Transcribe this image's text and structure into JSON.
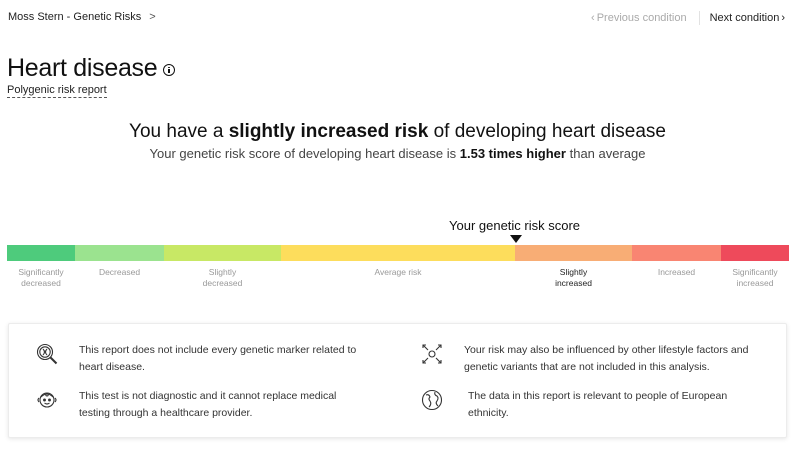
{
  "breadcrumb": {
    "label": "Moss Stern - Genetic Risks",
    "separator": ">"
  },
  "nav": {
    "prev_label": "Previous condition",
    "next_label": "Next condition",
    "prev_chevron": "‹",
    "next_chevron": "›"
  },
  "header": {
    "title": "Heart disease",
    "subtitle": "Polygenic risk report"
  },
  "summary": {
    "headline_pre": "You have a ",
    "headline_bold": "slightly increased risk",
    "headline_post": " of developing heart disease",
    "subline_pre": "Your genetic risk score of developing heart disease is ",
    "subline_bold": "1.53 times higher",
    "subline_post": " than average"
  },
  "risk_scale": {
    "score_label": "Your genetic risk score",
    "active_index": 4,
    "segments": [
      {
        "label_line1": "Significantly",
        "label_line2": "decreased",
        "color": "#4ecb7c"
      },
      {
        "label_line1": "Decreased",
        "label_line2": "",
        "color": "#9be38f"
      },
      {
        "label_line1": "Slightly",
        "label_line2": "decreased",
        "color": "#c8e865"
      },
      {
        "label_line1": "Average risk",
        "label_line2": "",
        "color": "#fddd5c"
      },
      {
        "label_line1": "Slightly",
        "label_line2": "increased",
        "color": "#f8ad75"
      },
      {
        "label_line1": "Increased",
        "label_line2": "",
        "color": "#f98572"
      },
      {
        "label_line1": "Significantly",
        "label_line2": "increased",
        "color": "#ee4a5b"
      }
    ]
  },
  "notes": [
    {
      "icon": "magnifier-dna-icon",
      "line1": "This report does not include every genetic marker related to",
      "line2": "heart disease."
    },
    {
      "icon": "lifestyle-factors-icon",
      "line1": "Your risk may also be influenced by other lifestyle factors and",
      "line2": "genetic variants that are not included in this analysis."
    },
    {
      "icon": "doctor-icon",
      "line1": "This test is not diagnostic and it cannot replace medical",
      "line2": "testing through a healthcare provider."
    },
    {
      "icon": "globe-icon",
      "line1": "The data in this report is relevant to people of European",
      "line2": "ethnicity."
    }
  ]
}
